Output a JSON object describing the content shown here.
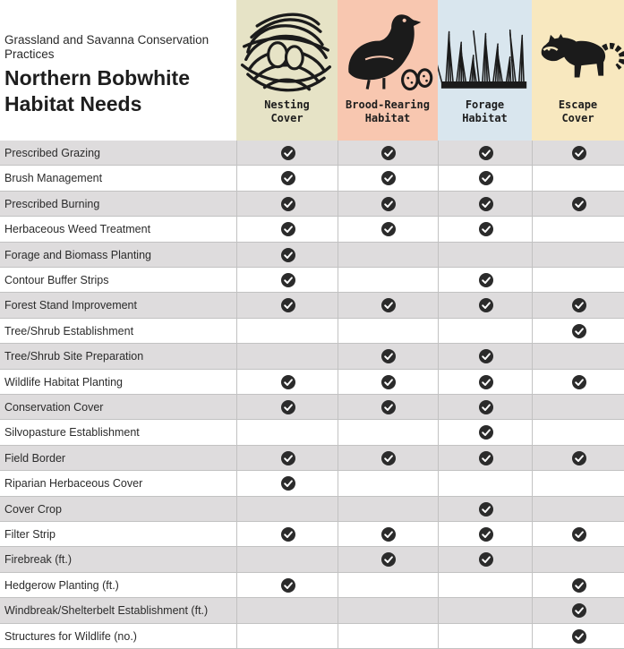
{
  "chart_data": {
    "type": "table",
    "subtitle": "Grassland and Savanna Conservation Practices",
    "title": "Northern Bobwhite Habitat Needs",
    "columns": [
      {
        "label": [
          "Nesting",
          "Cover"
        ],
        "color": "#e6e3c6",
        "icon": "nest-with-eggs-icon"
      },
      {
        "label": [
          "Brood-Rearing",
          "Habitat"
        ],
        "color": "#f8c7b0",
        "icon": "quail-with-eggs-icon"
      },
      {
        "label": [
          "Forage",
          "Habitat"
        ],
        "color": "#d9e6ee",
        "icon": "tall-grass-icon"
      },
      {
        "label": [
          "Escape",
          "Cover"
        ],
        "color": "#f8e8bf",
        "icon": "raccoon-icon"
      }
    ],
    "rows": [
      {
        "practice": "Prescribed Grazing",
        "values": [
          1,
          1,
          1,
          1
        ]
      },
      {
        "practice": "Brush Management",
        "values": [
          1,
          1,
          1,
          0
        ]
      },
      {
        "practice": "Prescribed Burning",
        "values": [
          1,
          1,
          1,
          1
        ]
      },
      {
        "practice": "Herbaceous Weed Treatment",
        "values": [
          1,
          1,
          1,
          0
        ]
      },
      {
        "practice": "Forage and Biomass Planting",
        "values": [
          1,
          0,
          0,
          0
        ]
      },
      {
        "practice": "Contour Buffer Strips",
        "values": [
          1,
          0,
          1,
          0
        ]
      },
      {
        "practice": "Forest Stand Improvement",
        "values": [
          1,
          1,
          1,
          1
        ]
      },
      {
        "practice": "Tree/Shrub Establishment",
        "values": [
          0,
          0,
          0,
          1
        ]
      },
      {
        "practice": "Tree/Shrub Site Preparation",
        "values": [
          0,
          1,
          1,
          0
        ]
      },
      {
        "practice": "Wildlife Habitat Planting",
        "values": [
          1,
          1,
          1,
          1
        ]
      },
      {
        "practice": "Conservation Cover",
        "values": [
          1,
          1,
          1,
          0
        ]
      },
      {
        "practice": "Silvopasture Establishment",
        "values": [
          0,
          0,
          1,
          0
        ]
      },
      {
        "practice": "Field Border",
        "values": [
          1,
          1,
          1,
          1
        ]
      },
      {
        "practice": "Riparian Herbaceous Cover",
        "values": [
          1,
          0,
          0,
          0
        ]
      },
      {
        "practice": "Cover Crop",
        "values": [
          0,
          0,
          1,
          0
        ]
      },
      {
        "practice": "Filter Strip",
        "values": [
          1,
          1,
          1,
          1
        ]
      },
      {
        "practice": "Firebreak (ft.)",
        "values": [
          0,
          1,
          1,
          0
        ]
      },
      {
        "practice": "Hedgerow Planting (ft.)",
        "values": [
          1,
          0,
          0,
          1
        ]
      },
      {
        "practice": "Windbreak/Shelterbelt Establishment (ft.)",
        "values": [
          0,
          0,
          0,
          1
        ]
      },
      {
        "practice": "Structures for Wildlife (no.)",
        "values": [
          0,
          0,
          0,
          1
        ]
      }
    ],
    "shaded_row_color": "#dedcdd",
    "check_color": "#2b2b2b"
  }
}
